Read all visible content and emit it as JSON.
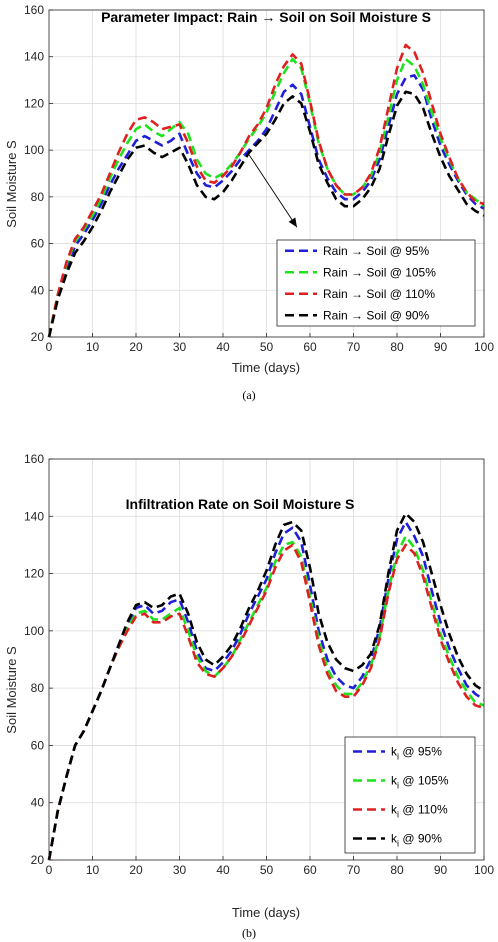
{
  "chart_data": [
    {
      "type": "line",
      "title": "Parameter Impact: Rain → Soil on Soil Moisture S",
      "xlabel": "Time (days)",
      "ylabel": "Soil Moisture S",
      "caption": "(a)",
      "xlim": [
        0,
        100
      ],
      "ylim": [
        20,
        160
      ],
      "xticks": [
        0,
        10,
        20,
        30,
        40,
        50,
        60,
        70,
        80,
        90,
        100
      ],
      "yticks": [
        20,
        40,
        60,
        80,
        100,
        120,
        140,
        160
      ],
      "grid": true,
      "legend_position": "bottom-right",
      "x": [
        0,
        2,
        4,
        6,
        8,
        10,
        12,
        14,
        16,
        18,
        20,
        22,
        24,
        26,
        28,
        30,
        32,
        34,
        36,
        38,
        40,
        42,
        44,
        46,
        48,
        50,
        52,
        54,
        56,
        58,
        60,
        62,
        64,
        66,
        68,
        70,
        72,
        74,
        76,
        78,
        80,
        82,
        84,
        86,
        88,
        90,
        92,
        94,
        96,
        98,
        100
      ],
      "series": [
        {
          "name": "Rain → Soil @ 95%",
          "color": "#1f1fd9",
          "values": [
            20,
            37,
            49,
            59,
            64,
            70,
            77,
            85,
            92,
            98,
            104,
            106,
            104,
            102,
            104,
            107,
            98,
            90,
            85,
            84,
            87,
            91,
            96,
            100,
            104,
            109,
            117,
            125,
            128,
            124,
            110,
            96,
            88,
            82,
            79,
            79,
            82,
            87,
            96,
            110,
            124,
            131,
            132,
            126,
            113,
            102,
            94,
            87,
            81,
            77,
            75
          ]
        },
        {
          "name": "Rain → Soil @ 105%",
          "color": "#1de31d",
          "values": [
            20,
            38,
            51,
            61,
            66,
            72,
            79,
            88,
            96,
            103,
            109,
            111,
            108,
            106,
            109,
            112,
            107,
            96,
            90,
            88,
            90,
            94,
            99,
            105,
            110,
            116,
            125,
            133,
            139,
            135,
            120,
            103,
            92,
            85,
            81,
            81,
            84,
            89,
            99,
            114,
            130,
            139,
            136,
            128,
            116,
            105,
            96,
            88,
            82,
            79,
            76
          ]
        },
        {
          "name": "Rain → Soil @ 110%",
          "color": "#e02020",
          "values": [
            20,
            38,
            52,
            62,
            67,
            74,
            81,
            90,
            99,
            107,
            113,
            114,
            112,
            109,
            110,
            111,
            103,
            93,
            87,
            86,
            89,
            93,
            99,
            106,
            111,
            118,
            128,
            136,
            141,
            137,
            121,
            104,
            92,
            85,
            81,
            81,
            84,
            90,
            101,
            118,
            135,
            145,
            142,
            133,
            120,
            107,
            97,
            88,
            82,
            78,
            77
          ]
        },
        {
          "name": "Rain → Soil @ 90%",
          "color": "#000000",
          "values": [
            20,
            36,
            47,
            56,
            61,
            67,
            74,
            82,
            89,
            96,
            101,
            102,
            99,
            97,
            99,
            101,
            94,
            85,
            80,
            79,
            82,
            87,
            93,
            99,
            103,
            107,
            113,
            120,
            123,
            120,
            108,
            94,
            86,
            79,
            76,
            76,
            79,
            84,
            92,
            106,
            119,
            125,
            124,
            118,
            107,
            97,
            89,
            83,
            77,
            74,
            72
          ]
        }
      ],
      "annotation": {
        "type": "arrow",
        "from": [
          46,
          98
        ],
        "to": [
          57,
          67
        ]
      }
    },
    {
      "type": "line",
      "title": "Infiltration Rate on Soil Moisture S",
      "xlabel": "Time (days)",
      "ylabel": "Soil Moisture S",
      "caption": "(b)",
      "xlim": [
        0,
        100
      ],
      "ylim": [
        20,
        160
      ],
      "xticks": [
        0,
        10,
        20,
        30,
        40,
        50,
        60,
        70,
        80,
        90,
        100
      ],
      "yticks": [
        20,
        40,
        60,
        80,
        100,
        120,
        140,
        160
      ],
      "grid": true,
      "legend_position": "bottom-right",
      "x": [
        0,
        2,
        4,
        6,
        8,
        10,
        12,
        14,
        16,
        18,
        20,
        22,
        24,
        26,
        28,
        30,
        32,
        34,
        36,
        38,
        40,
        42,
        44,
        46,
        48,
        50,
        52,
        54,
        56,
        58,
        60,
        62,
        64,
        66,
        68,
        70,
        72,
        74,
        76,
        78,
        80,
        82,
        84,
        86,
        88,
        90,
        92,
        94,
        96,
        98,
        100
      ],
      "series": [
        {
          "name": "k_i @ 95%",
          "label_main": "k",
          "label_sub": "i",
          "label_rest": " @ 95%",
          "color": "#1f1fd9",
          "values": [
            20,
            37,
            49,
            60,
            65,
            72,
            79,
            87,
            95,
            102,
            108,
            109,
            106,
            107,
            110,
            111,
            103,
            93,
            87,
            86,
            89,
            93,
            99,
            106,
            112,
            118,
            127,
            134,
            136,
            131,
            116,
            100,
            90,
            84,
            81,
            80,
            84,
            90,
            101,
            118,
            132,
            138,
            133,
            126,
            114,
            103,
            94,
            87,
            81,
            78,
            76
          ]
        },
        {
          "name": "k_i @ 105%",
          "label_main": "k",
          "label_sub": "i",
          "label_rest": " @ 105%",
          "color": "#1de31d",
          "values": [
            20,
            37,
            49,
            60,
            65,
            72,
            79,
            87,
            94,
            101,
            106,
            107,
            104,
            104,
            106,
            108,
            100,
            91,
            86,
            84,
            87,
            91,
            97,
            103,
            109,
            115,
            124,
            130,
            131,
            126,
            112,
            97,
            87,
            81,
            78,
            78,
            82,
            88,
            98,
            114,
            127,
            133,
            129,
            121,
            110,
            99,
            91,
            84,
            79,
            75,
            74
          ]
        },
        {
          "name": "k_i @ 110%",
          "label_main": "k",
          "label_sub": "i",
          "label_rest": " @ 110%",
          "color": "#e02020",
          "values": [
            20,
            37,
            49,
            60,
            65,
            72,
            79,
            87,
            94,
            100,
            105,
            106,
            103,
            103,
            105,
            106,
            98,
            89,
            85,
            84,
            87,
            91,
            96,
            102,
            108,
            114,
            122,
            128,
            130,
            124,
            110,
            95,
            85,
            79,
            77,
            77,
            81,
            87,
            97,
            113,
            125,
            130,
            127,
            119,
            108,
            97,
            89,
            82,
            77,
            74,
            73
          ]
        },
        {
          "name": "k_i @ 90%",
          "label_main": "k",
          "label_sub": "i",
          "label_rest": " @ 90%",
          "color": "#000000",
          "values": [
            20,
            37,
            49,
            60,
            65,
            72,
            79,
            87,
            95,
            103,
            109,
            110,
            108,
            109,
            112,
            113,
            106,
            96,
            90,
            88,
            91,
            95,
            101,
            108,
            114,
            121,
            130,
            137,
            138,
            135,
            122,
            106,
            96,
            90,
            87,
            86,
            88,
            92,
            102,
            120,
            135,
            141,
            138,
            131,
            120,
            109,
            99,
            91,
            85,
            81,
            79
          ]
        }
      ]
    }
  ]
}
